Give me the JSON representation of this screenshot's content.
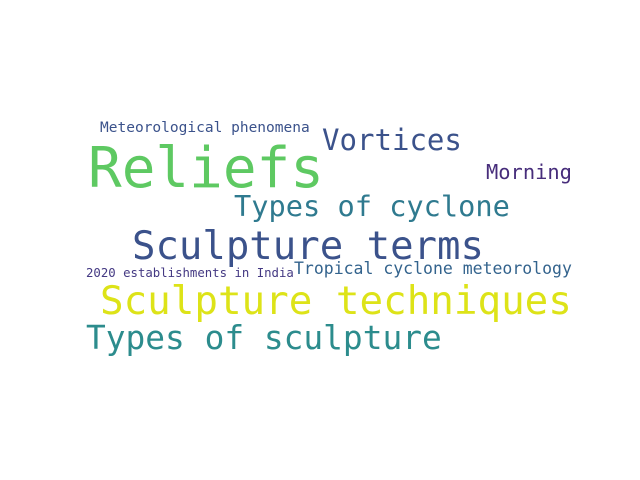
{
  "word_cloud": {
    "words": [
      {
        "text": "Reliefs",
        "color": "#5ec962"
      },
      {
        "text": "Sculpture techniques",
        "color": "#dde318"
      },
      {
        "text": "Sculpture terms",
        "color": "#3b528b"
      },
      {
        "text": "Types of sculpture",
        "color": "#2c8c8d"
      },
      {
        "text": "Types of cyclone",
        "color": "#2f7a8f"
      },
      {
        "text": "Vortices",
        "color": "#3b528b"
      },
      {
        "text": "Morning",
        "color": "#472d7b"
      },
      {
        "text": "Meteorological phenomena",
        "color": "#3b528b"
      },
      {
        "text": "Tropical cyclone meteorology",
        "color": "#33638d"
      },
      {
        "text": "2020 establishments in India",
        "color": "#443983"
      }
    ]
  }
}
